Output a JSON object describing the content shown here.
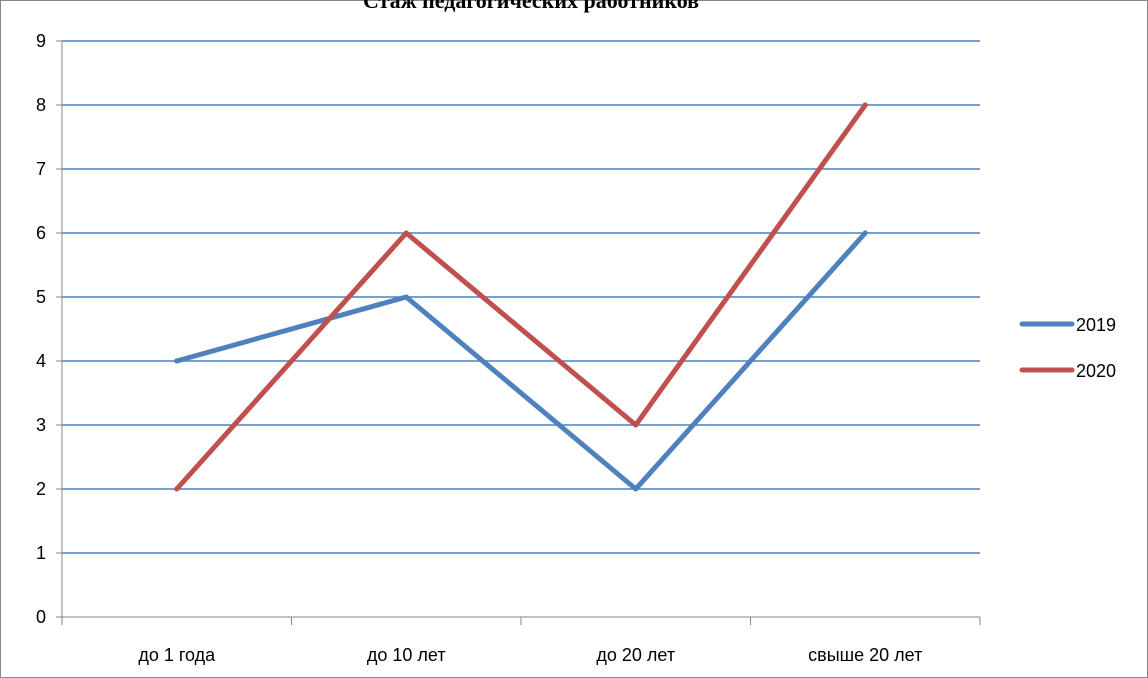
{
  "chart_data": {
    "type": "line",
    "title": "Стаж педагогических работников",
    "categories": [
      "до 1 года",
      "до 10 лет",
      "до 20 лет",
      "свыше 20 лет"
    ],
    "series": [
      {
        "name": "2019",
        "values": [
          4,
          5,
          2,
          6
        ],
        "color": "#4F81BD"
      },
      {
        "name": "2020",
        "values": [
          2,
          6,
          3,
          8
        ],
        "color": "#C0504D"
      }
    ],
    "ylim": [
      0,
      9
    ],
    "yticks": [
      "0",
      "1",
      "2",
      "3",
      "4",
      "5",
      "6",
      "7",
      "8",
      "9"
    ],
    "grid": true,
    "gridline_color": "#4F81BD",
    "legend_position": "right"
  }
}
